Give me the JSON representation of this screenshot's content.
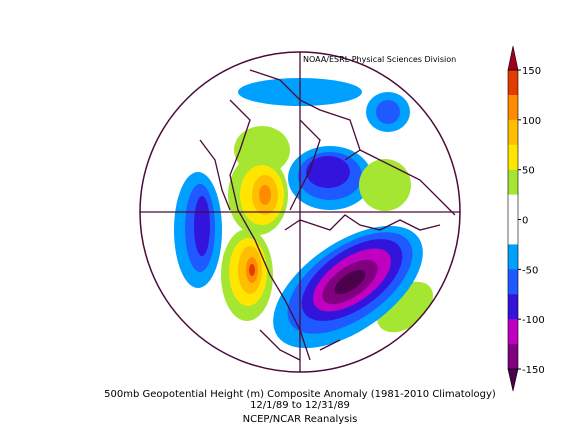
{
  "credit": "NOAA/ESRL Physical Sciences Division",
  "colorbar": {
    "lim": [
      -150,
      150
    ],
    "ticks": [
      150,
      100,
      50,
      0,
      -50,
      -100,
      -150
    ],
    "above_color": "#a0001e",
    "below_color": "#4b004b",
    "colors": [
      "#e23c00",
      "#ff8c00",
      "#ffbe00",
      "#ffe600",
      "#a5e632",
      "#ffffff",
      "#ffffff",
      "#00a0ff",
      "#1e5aff",
      "#3214dc",
      "#c000c0",
      "#800080"
    ]
  },
  "caption": [
    "500mb Geopotential Height (m) Composite Anomaly (1981-2010 Climatology)",
    "12/1/89  to 12/31/89",
    "NCEP/NCAR Reanalysis"
  ]
}
